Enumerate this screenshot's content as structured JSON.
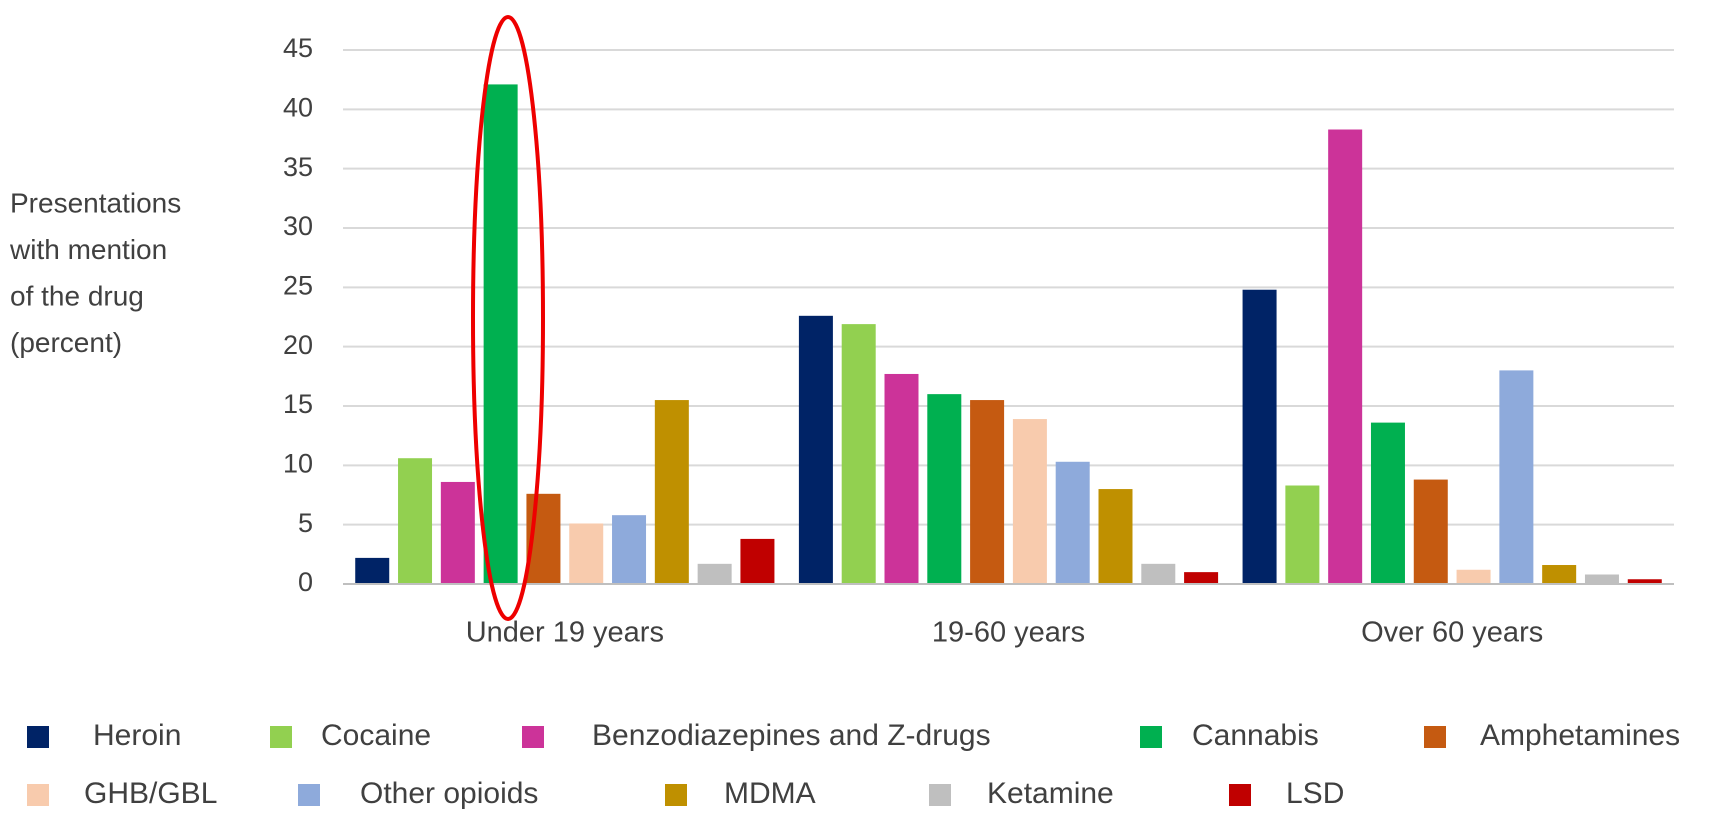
{
  "chart_data": {
    "type": "bar",
    "ylabel": [
      "Presentations",
      "with  mention",
      "of the drug",
      "(percent)"
    ],
    "categories": [
      "Under 19 years",
      "19-60 years",
      "Over 60 years"
    ],
    "series": [
      {
        "name": "Heroin",
        "color": "#002366",
        "values": [
          2.2,
          22.6,
          24.8
        ]
      },
      {
        "name": "Cocaine",
        "color": "#92d050",
        "values": [
          10.6,
          21.9,
          8.3
        ]
      },
      {
        "name": "Benzodiazepines and Z-drugs",
        "color": "#cc3399",
        "values": [
          8.6,
          17.7,
          38.3
        ]
      },
      {
        "name": "Cannabis",
        "color": "#00b050",
        "values": [
          42.1,
          16.0,
          13.6
        ]
      },
      {
        "name": "Amphetamines",
        "color": "#c55a11",
        "values": [
          7.6,
          15.5,
          8.8
        ]
      },
      {
        "name": "GHB/GBL",
        "color": "#f8cbad",
        "values": [
          5.1,
          13.9,
          1.2
        ]
      },
      {
        "name": "Other opioids",
        "color": "#8eaadb",
        "values": [
          5.8,
          10.3,
          18.0
        ]
      },
      {
        "name": "MDMA",
        "color": "#bf9000",
        "values": [
          15.5,
          8.0,
          1.6
        ]
      },
      {
        "name": "Ketamine",
        "color": "#bfbfbf",
        "values": [
          1.7,
          1.7,
          0.8
        ]
      },
      {
        "name": "LSD",
        "color": "#c00000",
        "values": [
          3.8,
          1.0,
          0.4
        ]
      }
    ],
    "ylim": [
      0,
      45
    ],
    "yticks": [
      0,
      5,
      10,
      15,
      20,
      25,
      30,
      35,
      40,
      45
    ],
    "grid": true
  }
}
